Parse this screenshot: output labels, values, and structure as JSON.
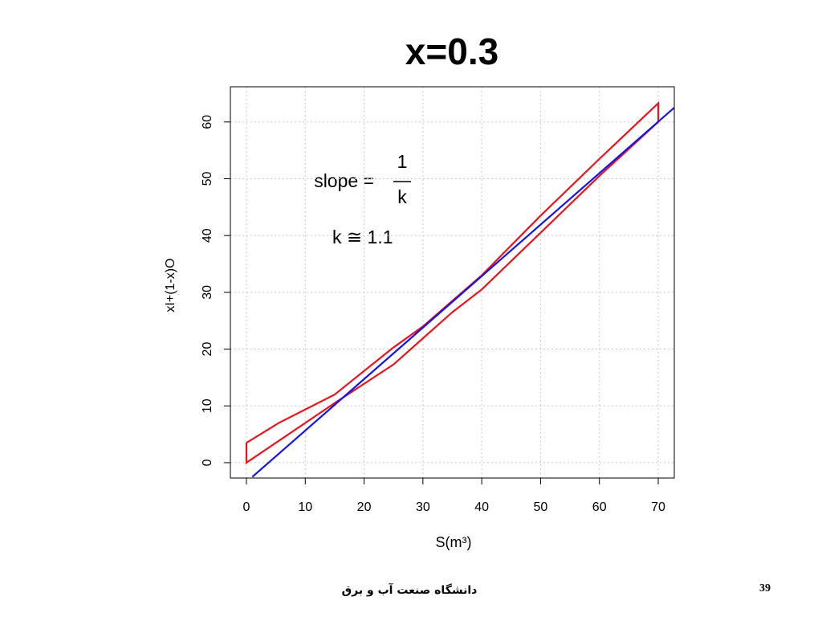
{
  "chart_data": {
    "type": "line",
    "title": "x=0.3",
    "x_label": "S(m³)",
    "y_label": "xI+(1-x)O",
    "annotations": {
      "slope": "slope =",
      "numerator": "1",
      "denominator": "k",
      "k_estimate": "k ≅ 1.1"
    },
    "xlim": [
      -2.73,
      72.73
    ],
    "ylim": [
      -2.7,
      66.2
    ],
    "xticks": [
      0,
      10,
      20,
      30,
      40,
      50,
      60,
      70
    ],
    "yticks": [
      0,
      10,
      20,
      30,
      40,
      50,
      60
    ],
    "grid": true,
    "series": [
      {
        "color": "#e8141b",
        "x": [
          0,
          5.5,
          15,
          25,
          30,
          40,
          50,
          60,
          70,
          70,
          60,
          50,
          40,
          35,
          25,
          15,
          0,
          0
        ],
        "values": [
          3.5,
          7,
          12,
          20.3,
          24,
          33,
          43.5,
          53.5,
          63.3,
          60,
          50.5,
          40.5,
          30.5,
          26.5,
          17.3,
          10.5,
          0,
          3.5
        ]
      },
      {
        "color": "#1414e6",
        "x": [
          1,
          72.7
        ],
        "values": [
          -2.5,
          62.5
        ]
      }
    ]
  },
  "footer": {
    "text": "دانشگاه صنعت آب و برق",
    "page_number": 39
  }
}
